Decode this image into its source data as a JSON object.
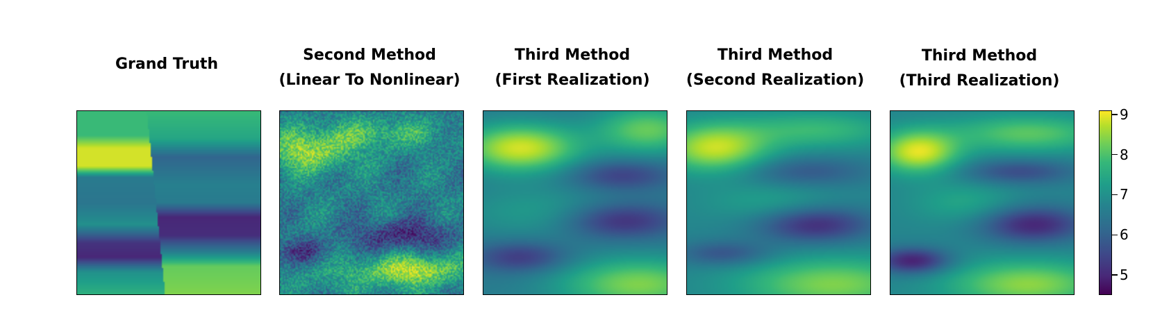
{
  "chart_data": {
    "type": "heatmap",
    "colormap": "viridis",
    "panels": [
      {
        "title_line1": "Grand Truth",
        "title_line2": ""
      },
      {
        "title_line1": "Second Method",
        "title_line2": "(Linear To Nonlinear)"
      },
      {
        "title_line1": "Third Method",
        "title_line2": "(First Realization)"
      },
      {
        "title_line1": "Third Method",
        "title_line2": "(Second Realization)"
      },
      {
        "title_line1": "Third Method",
        "title_line2": "(Third Realization)"
      }
    ],
    "colorbar": {
      "range": [
        4.5,
        9.1
      ],
      "ticks": [
        "9",
        "8",
        "7",
        "6",
        "5"
      ],
      "tick_values": [
        9,
        8,
        7,
        6,
        5
      ]
    }
  }
}
